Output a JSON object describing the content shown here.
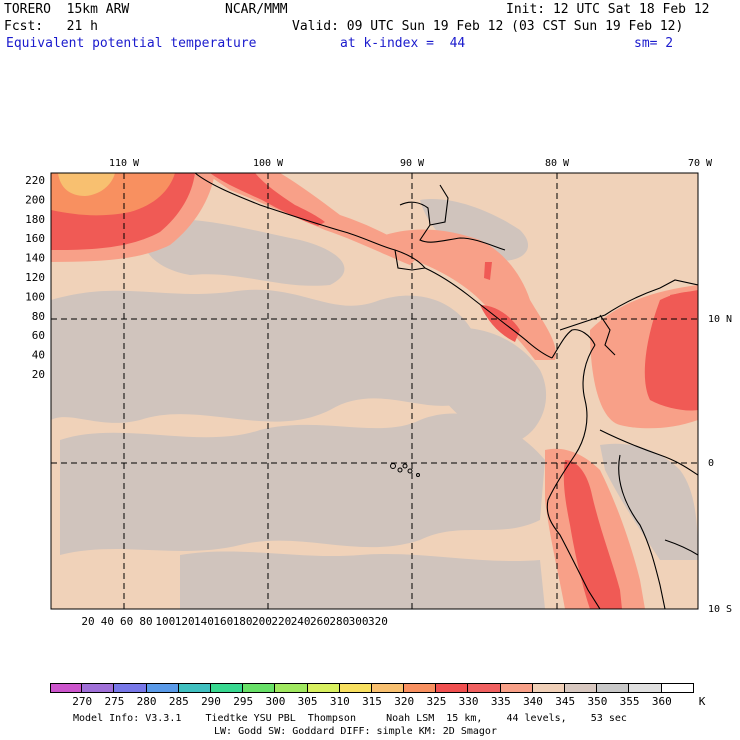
{
  "header": {
    "model": "TORERO  15km ARW",
    "center": "NCAR/MMM",
    "init": "Init: 12 UTC Sat 18 Feb 12",
    "fcst": "Fcst:   21 h",
    "valid": "Valid: 09 UTC Sun 19 Feb 12 (03 CST Sun 19 Feb 12)",
    "field": "Equivalent potential temperature",
    "level": "at k-index =  44",
    "smooth": "sm= 2"
  },
  "map": {
    "lon_labels": [
      "110 W",
      "100 W",
      "90 W",
      "80 W",
      "70 W"
    ],
    "lat_labels": [
      "10 N",
      "0",
      "10 S"
    ],
    "y_ticks": [
      "220",
      "200",
      "180",
      "160",
      "140",
      "120",
      "100",
      "80",
      "60",
      "40",
      "20"
    ],
    "x_ticks": [
      "20",
      "40",
      "60",
      "80",
      "100",
      "120",
      "140",
      "160",
      "180",
      "200",
      "220",
      "240",
      "260",
      "280",
      "300",
      "320"
    ]
  },
  "colorbar": {
    "labels": [
      "270",
      "275",
      "280",
      "285",
      "290",
      "295",
      "300",
      "305",
      "310",
      "315",
      "320",
      "325",
      "330",
      "335",
      "340",
      "345",
      "350",
      "355",
      "360"
    ],
    "unit": "K",
    "colors": [
      "#cc55cc",
      "#a070d8",
      "#7878e8",
      "#5a9ae8",
      "#40c0c0",
      "#38d890",
      "#68e068",
      "#a0e860",
      "#d8f060",
      "#f8e060",
      "#f8c070",
      "#f89060",
      "#f05050",
      "#f06060",
      "#f8a088",
      "#f0d0b8",
      "#d8c8c0",
      "#c8c8c8",
      "#e0e0e0",
      "#ffffff"
    ]
  },
  "footer": {
    "line1": "Model Info: V3.3.1    Tiedtke YSU PBL  Thompson     Noah LSM  15 km,    44 levels,    53 sec",
    "line2": "LW: Godd SW: Goddard DIFF: simple KM: 2D Smagor"
  }
}
